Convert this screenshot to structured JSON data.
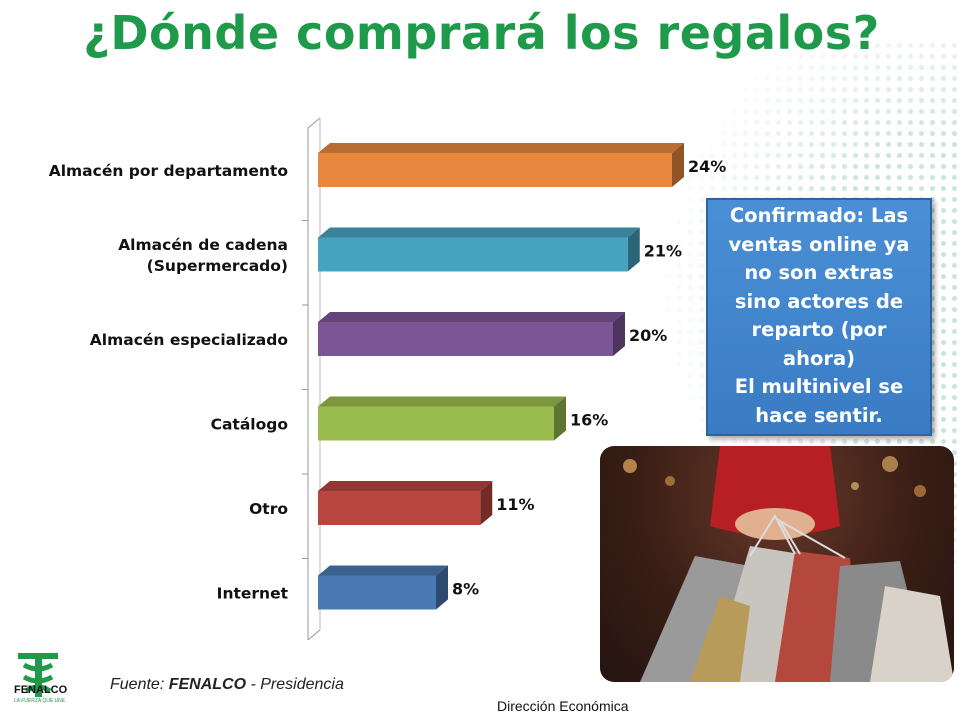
{
  "title": "¿Dónde comprará los regalos?",
  "chart_data": {
    "type": "bar",
    "orientation": "horizontal",
    "categories": [
      [
        "Almacén por departamento"
      ],
      [
        "Almacén de cadena",
        "(Supermercado)"
      ],
      [
        "Almacén especializado"
      ],
      [
        "Catálogo"
      ],
      [
        "Otro"
      ],
      [
        "Internet"
      ]
    ],
    "values": [
      24,
      21,
      20,
      16,
      11,
      8
    ],
    "value_labels": [
      "24%",
      "21%",
      "20%",
      "16%",
      "11%",
      "8%"
    ],
    "colors": [
      "#e8883f",
      "#46a3c0",
      "#7c5597",
      "#9abb4e",
      "#b8453f",
      "#4a79b3"
    ],
    "grid": false
  },
  "callout": {
    "lines": [
      "Confirmado: Las",
      "ventas online ya",
      "no son extras",
      "sino actores de",
      "reparto (por",
      "ahora)",
      "El multinivel se",
      "hace sentir."
    ],
    "background": "#3f86cf"
  },
  "source": {
    "prefix": "Fuente: ",
    "org": "FENALCO",
    "suffix": " - Presidencia"
  },
  "logo": {
    "name": "FENALCO",
    "tagline": "LA FUERZA QUE UNE"
  },
  "footer": "Dirección Económica",
  "theme": {
    "title_color": "#1f9a4a",
    "accent": "#1f9a4a"
  }
}
